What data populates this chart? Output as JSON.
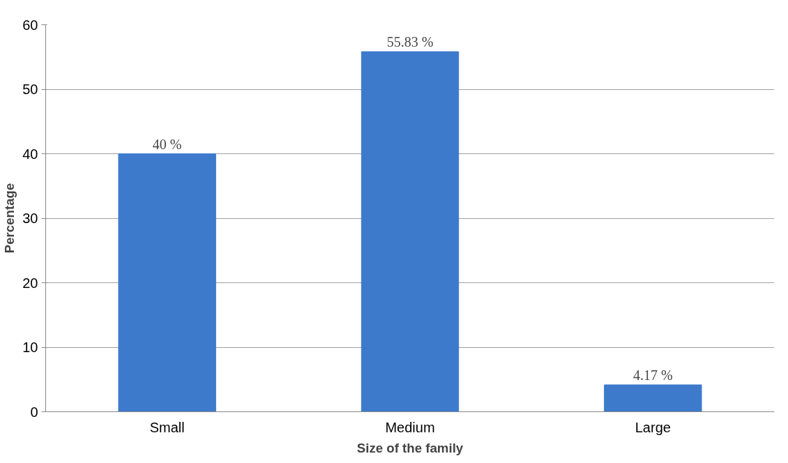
{
  "chart_data": {
    "type": "bar",
    "xlabel": "Size of the family",
    "ylabel": "Percentage",
    "categories": [
      "Small",
      "Medium",
      "Large"
    ],
    "values": [
      40,
      55.83,
      4.17
    ],
    "value_labels": [
      "40 %",
      "55.83 %",
      "4.17 %"
    ],
    "color": "#3d7acb",
    "ylim": [
      0,
      60
    ],
    "yticks": [
      0,
      10,
      20,
      30,
      40,
      50,
      60
    ],
    "grid": "y"
  }
}
